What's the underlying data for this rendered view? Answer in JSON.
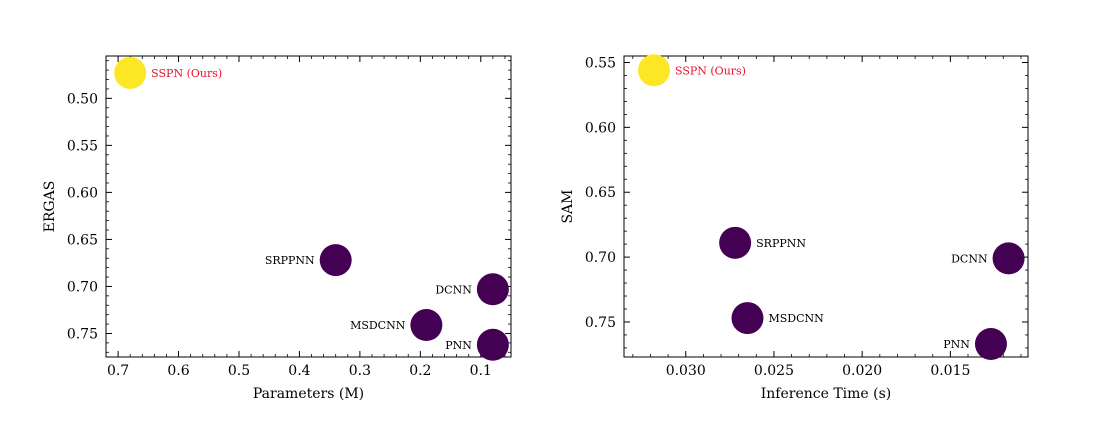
{
  "chart_data": [
    {
      "type": "scatter",
      "title": "",
      "xlabel": "Parameters (M)",
      "ylabel": "ERGAS",
      "x_inverted": true,
      "y_inverted": true,
      "xlim": [
        0.72,
        0.05
      ],
      "ylim": [
        0.455,
        0.775
      ],
      "xticks": [
        0.7,
        0.6,
        0.5,
        0.4,
        0.3,
        0.2,
        0.1
      ],
      "xtick_labels": [
        "0.7",
        "0.6",
        "0.5",
        "0.4",
        "0.3",
        "0.2",
        "0.1"
      ],
      "yticks": [
        0.5,
        0.55,
        0.6,
        0.65,
        0.7,
        0.75
      ],
      "ytick_labels": [
        "0.50",
        "0.55",
        "0.60",
        "0.65",
        "0.70",
        "0.75"
      ],
      "points": [
        {
          "name": "SSPN (Ours)",
          "x": 0.68,
          "y": 0.473,
          "color": "#fde725",
          "label_side": "right",
          "highlight": true
        },
        {
          "name": "SRPPNN",
          "x": 0.34,
          "y": 0.672,
          "color": "#440154",
          "label_side": "left",
          "highlight": false
        },
        {
          "name": "DCNN",
          "x": 0.08,
          "y": 0.703,
          "color": "#440154",
          "label_side": "left",
          "highlight": false
        },
        {
          "name": "MSDCNN",
          "x": 0.19,
          "y": 0.741,
          "color": "#440154",
          "label_side": "left",
          "highlight": false
        },
        {
          "name": "PNN",
          "x": 0.08,
          "y": 0.762,
          "color": "#440154",
          "label_side": "left",
          "highlight": false
        }
      ]
    },
    {
      "type": "scatter",
      "title": "",
      "xlabel": "Inference Time (s)",
      "ylabel": "SAM",
      "x_inverted": true,
      "y_inverted": true,
      "xlim": [
        0.0335,
        0.0106
      ],
      "ylim": [
        0.545,
        0.777
      ],
      "xticks": [
        0.03,
        0.025,
        0.02,
        0.015
      ],
      "xtick_labels": [
        "0.030",
        "0.025",
        "0.020",
        "0.015"
      ],
      "yticks": [
        0.55,
        0.6,
        0.65,
        0.7,
        0.75
      ],
      "ytick_labels": [
        "0.55",
        "0.60",
        "0.65",
        "0.70",
        "0.75"
      ],
      "points": [
        {
          "name": "SSPN (Ours)",
          "x": 0.0318,
          "y": 0.556,
          "color": "#fde725",
          "label_side": "right",
          "highlight": true
        },
        {
          "name": "SRPPNN",
          "x": 0.0272,
          "y": 0.689,
          "color": "#440154",
          "label_side": "right",
          "highlight": false
        },
        {
          "name": "DCNN",
          "x": 0.0117,
          "y": 0.701,
          "color": "#440154",
          "label_side": "left",
          "highlight": false
        },
        {
          "name": "MSDCNN",
          "x": 0.0265,
          "y": 0.747,
          "color": "#440154",
          "label_side": "right",
          "highlight": false
        },
        {
          "name": "PNN",
          "x": 0.0127,
          "y": 0.767,
          "color": "#440154",
          "label_side": "left",
          "highlight": false
        }
      ]
    }
  ]
}
